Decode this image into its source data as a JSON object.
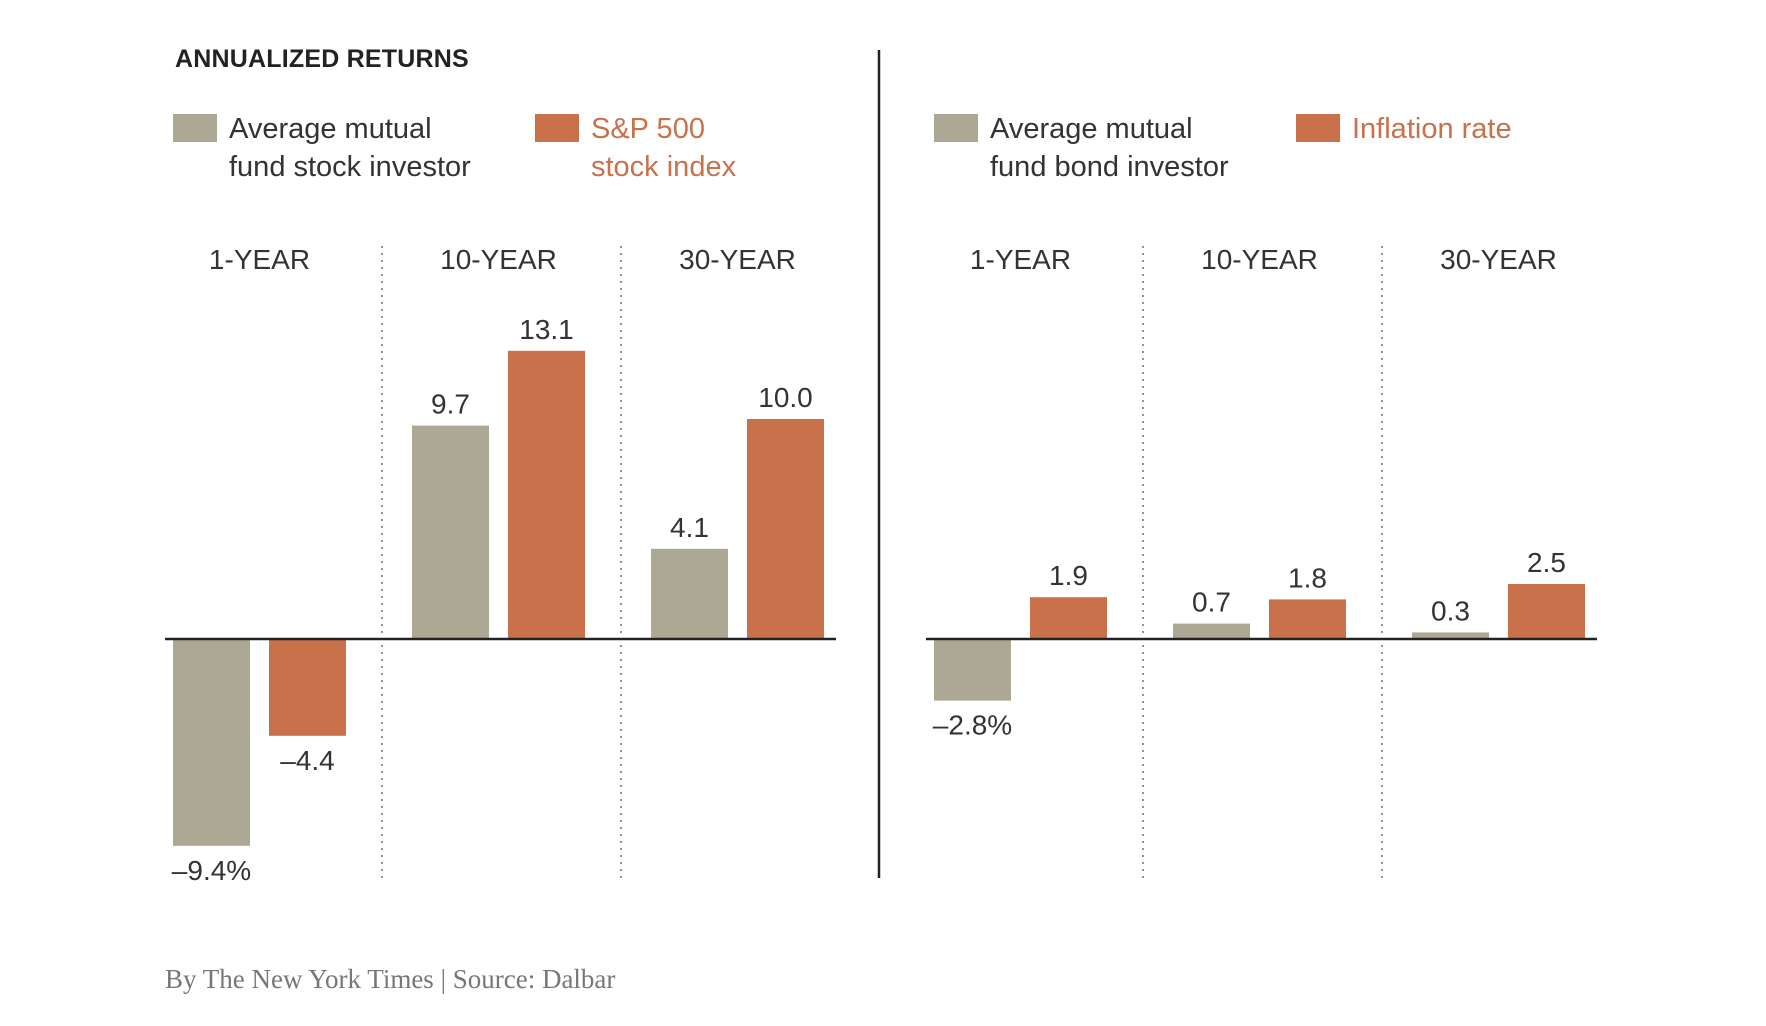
{
  "title": "ANNUALIZED RETURNS",
  "credit": "By The New York Times | Source: Dalbar",
  "colors": {
    "investor": "#aca894",
    "benchmark": "#c8714b",
    "text": "#333333"
  },
  "chart_data": [
    {
      "type": "bar",
      "categories": [
        "1-YEAR",
        "10-YEAR",
        "30-YEAR"
      ],
      "series": [
        {
          "name": "Average mutual fund stock investor",
          "legend_lines": [
            "Average mutual",
            "fund stock investor"
          ],
          "color": "#aca894",
          "values": [
            -9.4,
            9.7,
            4.1
          ],
          "labels": [
            "–9.4%",
            "9.7",
            "4.1"
          ]
        },
        {
          "name": "S&P 500 stock index",
          "legend_lines": [
            "S&P 500",
            "stock index"
          ],
          "color": "#c8714b",
          "values": [
            -4.4,
            13.1,
            10.0
          ],
          "labels": [
            "–4.4",
            "13.1",
            "10.0"
          ]
        }
      ],
      "ylabel": "",
      "grid": false
    },
    {
      "type": "bar",
      "categories": [
        "1-YEAR",
        "10-YEAR",
        "30-YEAR"
      ],
      "series": [
        {
          "name": "Average mutual fund bond investor",
          "legend_lines": [
            "Average mutual",
            "fund bond investor"
          ],
          "color": "#aca894",
          "values": [
            -2.8,
            0.7,
            0.3
          ],
          "labels": [
            "–2.8%",
            "0.7",
            "0.3"
          ]
        },
        {
          "name": "Inflation rate",
          "legend_lines": [
            "Inflation rate"
          ],
          "color": "#c8714b",
          "values": [
            1.9,
            1.8,
            2.5
          ],
          "labels": [
            "1.9",
            "1.8",
            "2.5"
          ]
        }
      ],
      "ylabel": "",
      "grid": false
    }
  ]
}
